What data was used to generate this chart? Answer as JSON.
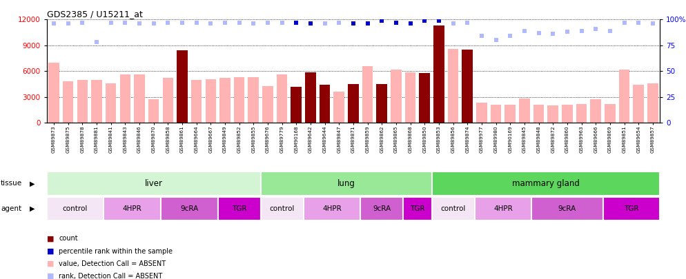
{
  "title": "GDS2385 / U15211_at",
  "samples": [
    "GSM89873",
    "GSM89875",
    "GSM89878",
    "GSM89881",
    "GSM89841",
    "GSM89843",
    "GSM89846",
    "GSM89870",
    "GSM89858",
    "GSM89861",
    "GSM89664",
    "GSM89667",
    "GSM89849",
    "GSM89852",
    "GSM89855",
    "GSM89676",
    "GSM89779",
    "GSM90168",
    "GSM89642",
    "GSM89644",
    "GSM89847",
    "GSM89871",
    "GSM89859",
    "GSM89862",
    "GSM89865",
    "GSM89868",
    "GSM89850",
    "GSM89853",
    "GSM89856",
    "GSM89874",
    "GSM89977",
    "GSM89980",
    "GSM90169",
    "GSM89845",
    "GSM89848",
    "GSM89872",
    "GSM89860",
    "GSM89963",
    "GSM89666",
    "GSM89869",
    "GSM89851",
    "GSM89654",
    "GSM89857"
  ],
  "count_values": [
    7000,
    4800,
    5000,
    5000,
    4600,
    5600,
    5600,
    2700,
    5200,
    8400,
    5000,
    5100,
    5200,
    5300,
    5300,
    4300,
    5600,
    4200,
    5900,
    4400,
    3600,
    4500,
    6600,
    4500,
    6200,
    5900,
    5800,
    11300,
    8600,
    8500,
    2300,
    2100,
    2100,
    2800,
    2100,
    2000,
    2100,
    2200,
    2700,
    2200,
    6200,
    4400,
    4600
  ],
  "count_is_dark": [
    false,
    false,
    false,
    false,
    false,
    false,
    false,
    false,
    false,
    true,
    false,
    false,
    false,
    false,
    false,
    false,
    false,
    true,
    true,
    true,
    false,
    true,
    false,
    true,
    false,
    false,
    true,
    true,
    false,
    true,
    false,
    false,
    false,
    false,
    false,
    false,
    false,
    false,
    false,
    false,
    false,
    false,
    false
  ],
  "percentile_rank": [
    96,
    96,
    97,
    78,
    97,
    97,
    96,
    96,
    97,
    97,
    97,
    96,
    97,
    97,
    96,
    97,
    97,
    97,
    96,
    96,
    97,
    96,
    96,
    99,
    97,
    96,
    99,
    99,
    96,
    97,
    84,
    80,
    84,
    89,
    87,
    86,
    88,
    89,
    91,
    89,
    97,
    97,
    96
  ],
  "percentile_is_dark": [
    false,
    false,
    false,
    false,
    false,
    false,
    false,
    false,
    false,
    false,
    false,
    false,
    false,
    false,
    false,
    false,
    false,
    true,
    true,
    false,
    false,
    true,
    true,
    true,
    true,
    true,
    true,
    true,
    false,
    false,
    false,
    false,
    false,
    false,
    false,
    false,
    false,
    false,
    false,
    false,
    false,
    false,
    false
  ],
  "tissue_groups": [
    {
      "label": "liver",
      "start": 0,
      "end": 15,
      "color": "#d4f5d4"
    },
    {
      "label": "lung",
      "start": 15,
      "end": 27,
      "color": "#98e898"
    },
    {
      "label": "mammary gland",
      "start": 27,
      "end": 43,
      "color": "#5cd65c"
    }
  ],
  "agent_groups": [
    {
      "label": "control",
      "start": 0,
      "end": 4,
      "color": "#f5e6f5"
    },
    {
      "label": "4HPR",
      "start": 4,
      "end": 8,
      "color": "#e8a0e8"
    },
    {
      "label": "9cRA",
      "start": 8,
      "end": 12,
      "color": "#d060d0"
    },
    {
      "label": "TGR",
      "start": 12,
      "end": 15,
      "color": "#cc00cc"
    },
    {
      "label": "control",
      "start": 15,
      "end": 18,
      "color": "#f5e6f5"
    },
    {
      "label": "4HPR",
      "start": 18,
      "end": 22,
      "color": "#e8a0e8"
    },
    {
      "label": "9cRA",
      "start": 22,
      "end": 25,
      "color": "#d060d0"
    },
    {
      "label": "TGR",
      "start": 25,
      "end": 27,
      "color": "#cc00cc"
    },
    {
      "label": "control",
      "start": 27,
      "end": 30,
      "color": "#f5e6f5"
    },
    {
      "label": "4HPR",
      "start": 30,
      "end": 34,
      "color": "#e8a0e8"
    },
    {
      "label": "9cRA",
      "start": 34,
      "end": 39,
      "color": "#d060d0"
    },
    {
      "label": "TGR",
      "start": 39,
      "end": 43,
      "color": "#cc00cc"
    }
  ],
  "ylim_left": [
    0,
    12000
  ],
  "ylim_right": [
    0,
    100
  ],
  "yticks_left": [
    0,
    3000,
    6000,
    9000,
    12000
  ],
  "yticks_right": [
    0,
    25,
    50,
    75,
    100
  ],
  "bar_color_dark": "#8b0000",
  "bar_color_light": "#ffb3b3",
  "dot_color_dark": "#0000cc",
  "dot_color_light": "#b0b8ff",
  "background_color": "#ffffff"
}
